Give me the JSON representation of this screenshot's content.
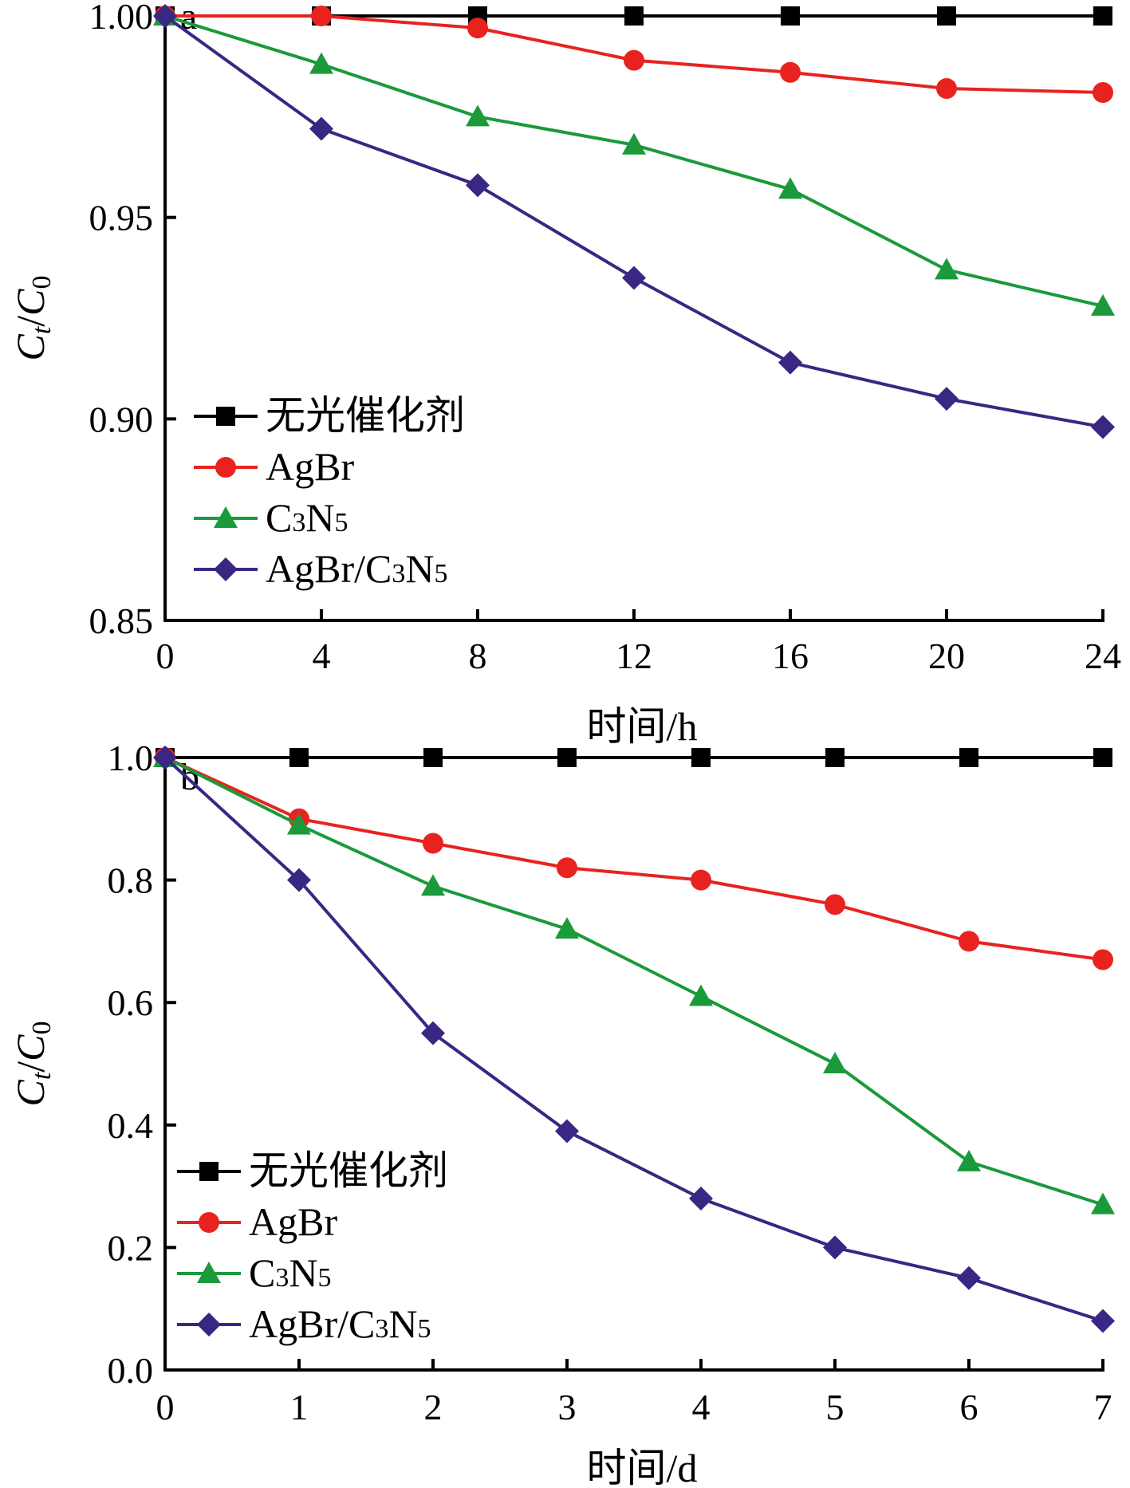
{
  "chart_data": [
    {
      "type": "line",
      "panel_label": "a",
      "xlabel": "时间/h",
      "ylabel_main": "C",
      "ylabel_sub": "t",
      "ylabel_sep": "/C",
      "ylabel_sub2": "0",
      "x": [
        0,
        4,
        8,
        12,
        16,
        20,
        24
      ],
      "xticks": [
        "0",
        "4",
        "8",
        "12",
        "16",
        "20",
        "24"
      ],
      "xlim": [
        0,
        24
      ],
      "yticks": [
        "0.85",
        "0.90",
        "0.95",
        "1.00"
      ],
      "ytick_values": [
        0.85,
        0.9,
        0.95,
        1.0
      ],
      "ylim": [
        0.85,
        1.0
      ],
      "grid": false,
      "legend_position": "lower-left",
      "series": [
        {
          "name": "无光催化剂",
          "marker": "square",
          "color": "#000000",
          "values": [
            1.0,
            1.0,
            1.0,
            1.0,
            1.0,
            1.0,
            1.0
          ]
        },
        {
          "name": "AgBr",
          "marker": "circle",
          "color": "#e8231f",
          "values": [
            1.0,
            1.0,
            0.997,
            0.989,
            0.986,
            0.982,
            0.981
          ]
        },
        {
          "name": "C3N5",
          "name_parts": [
            "C",
            "3",
            "N",
            "5"
          ],
          "marker": "triangle",
          "color": "#1a9a3a",
          "values": [
            1.0,
            0.988,
            0.975,
            0.968,
            0.957,
            0.937,
            0.928
          ]
        },
        {
          "name": "AgBr/C3N5",
          "name_parts": [
            "AgBr/C",
            "3",
            "N",
            "5"
          ],
          "marker": "diamond",
          "color": "#3a2683",
          "values": [
            1.0,
            0.972,
            0.958,
            0.935,
            0.914,
            0.905,
            0.898
          ]
        }
      ]
    },
    {
      "type": "line",
      "panel_label": "b",
      "xlabel": "时间/d",
      "ylabel_main": "C",
      "ylabel_sub": "t",
      "ylabel_sep": "/C",
      "ylabel_sub2": "0",
      "x": [
        0,
        1,
        2,
        3,
        4,
        5,
        6,
        7
      ],
      "xticks": [
        "0",
        "1",
        "2",
        "3",
        "4",
        "5",
        "6",
        "7"
      ],
      "xlim": [
        0,
        7
      ],
      "yticks": [
        "0.0",
        "0.2",
        "0.4",
        "0.6",
        "0.8",
        "1.0"
      ],
      "ytick_values": [
        0.0,
        0.2,
        0.4,
        0.6,
        0.8,
        1.0
      ],
      "ylim": [
        0.0,
        1.0
      ],
      "grid": false,
      "legend_position": "lower-left",
      "series": [
        {
          "name": "无光催化剂",
          "marker": "square",
          "color": "#000000",
          "values": [
            1.0,
            1.0,
            1.0,
            1.0,
            1.0,
            1.0,
            1.0,
            1.0
          ]
        },
        {
          "name": "AgBr",
          "marker": "circle",
          "color": "#e8231f",
          "values": [
            1.0,
            0.9,
            0.86,
            0.82,
            0.8,
            0.76,
            0.7,
            0.67
          ]
        },
        {
          "name": "C3N5",
          "name_parts": [
            "C",
            "3",
            "N",
            "5"
          ],
          "marker": "triangle",
          "color": "#1a9a3a",
          "values": [
            1.0,
            0.89,
            0.79,
            0.72,
            0.61,
            0.5,
            0.34,
            0.27
          ]
        },
        {
          "name": "AgBr/C3N5",
          "name_parts": [
            "AgBr/C",
            "3",
            "N",
            "5"
          ],
          "marker": "diamond",
          "color": "#3a2683",
          "values": [
            1.0,
            0.8,
            0.55,
            0.39,
            0.28,
            0.2,
            0.15,
            0.08
          ]
        }
      ]
    }
  ]
}
